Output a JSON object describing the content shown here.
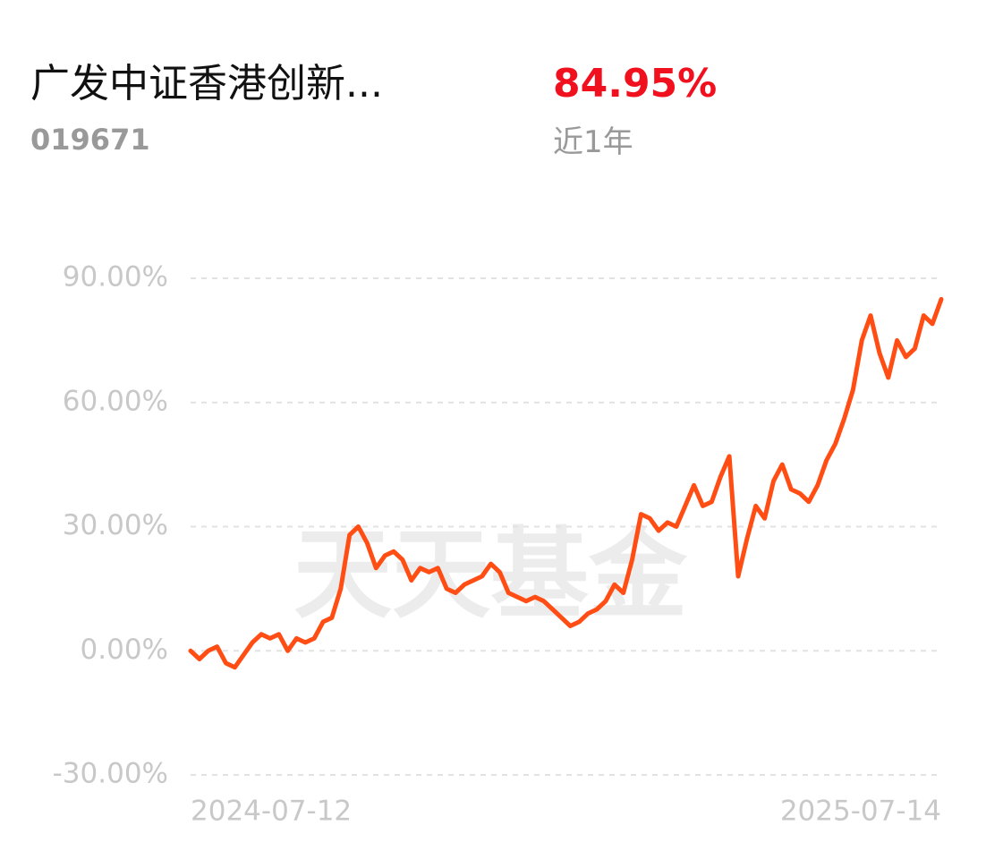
{
  "header": {
    "title": "广发中证香港创新...",
    "code": "019671",
    "return": "84.95%",
    "period": "近1年"
  },
  "watermark": "天天基金",
  "chart_data": {
    "type": "line",
    "categories": [
      "2024-07-12",
      null,
      null,
      null,
      null,
      null,
      null,
      null,
      null,
      null,
      null,
      null,
      null,
      null,
      null,
      null,
      null,
      null,
      null,
      null,
      null,
      null,
      null,
      null,
      null,
      null,
      null,
      null,
      null,
      null,
      null,
      null,
      null,
      null,
      null,
      null,
      null,
      null,
      null,
      null,
      null,
      null,
      null,
      null,
      null,
      null,
      null,
      null,
      null,
      null,
      null,
      null,
      null,
      null,
      null,
      null,
      null,
      null,
      null,
      null,
      null,
      null,
      null,
      null,
      null,
      null,
      null,
      null,
      null,
      null,
      null,
      null,
      null,
      null,
      null,
      null,
      null,
      null,
      null,
      null,
      null,
      null,
      null,
      null,
      null,
      "2025-07-14"
    ],
    "series": [
      {
        "color": "#ff4d14",
        "values": [
          0,
          -2,
          0,
          1,
          -3,
          -4,
          -1,
          2,
          4,
          3,
          4,
          0,
          3,
          2,
          3,
          7,
          8,
          15,
          28,
          30,
          26,
          20,
          23,
          24,
          22,
          17,
          20,
          19,
          20,
          15,
          14,
          16,
          17,
          18,
          21,
          19,
          14,
          13,
          12,
          13,
          12,
          10,
          8,
          6,
          7,
          9,
          10,
          12,
          16,
          14,
          22,
          33,
          32,
          29,
          31,
          30,
          35,
          40,
          35,
          36,
          42,
          47,
          18,
          27,
          35,
          32,
          41,
          45,
          39,
          38,
          36,
          40,
          46,
          50,
          56,
          63,
          75,
          81,
          72,
          66,
          75,
          71,
          73,
          81,
          79,
          84.95
        ]
      }
    ],
    "ylim": [
      -30,
      90
    ],
    "yticks": [
      {
        "value": -30,
        "label": "-30.00%"
      },
      {
        "value": 0,
        "label": "0.00%"
      },
      {
        "value": 30,
        "label": "30.00%"
      },
      {
        "value": 60,
        "label": "60.00%"
      },
      {
        "value": 90,
        "label": "90.00%"
      }
    ],
    "grid": true
  }
}
